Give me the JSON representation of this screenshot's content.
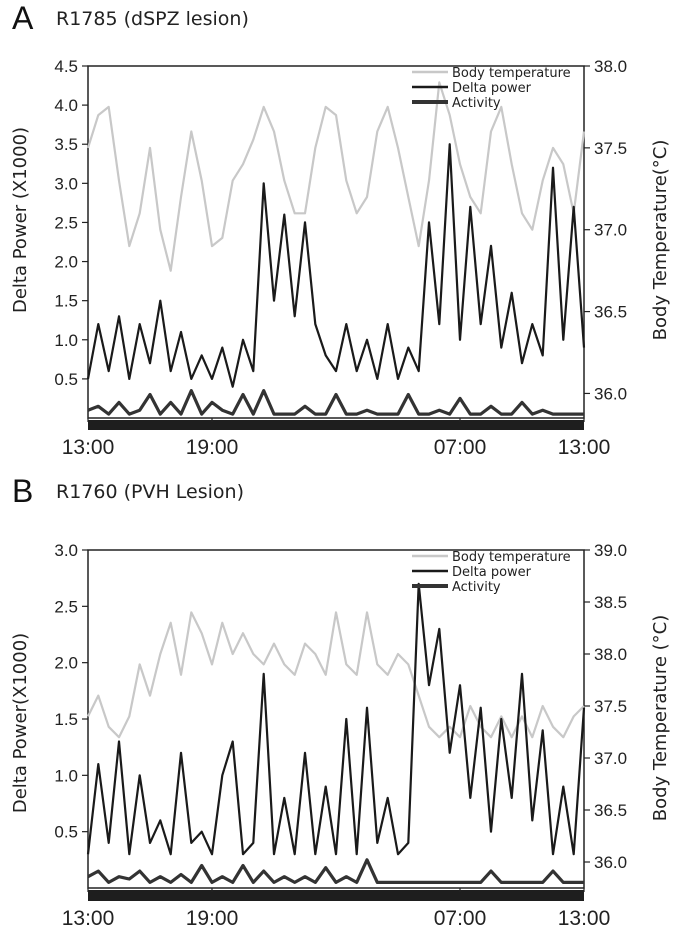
{
  "chart_data": [
    {
      "panel": "A",
      "title": "R1785 (dSPZ lesion)",
      "type": "line",
      "ylabel": "Delta Power (X1000)",
      "y2label": "Body Temperature(°C)",
      "ylim": [
        0,
        4.5
      ],
      "y2lim": [
        35.85,
        38.0
      ],
      "yticks": [
        "0.5",
        "1.0",
        "1.5",
        "2.0",
        "2.5",
        "3.0",
        "3.5",
        "4.0",
        "4.5"
      ],
      "y2ticks": [
        "36.0",
        "36.5",
        "37.0",
        "37.5",
        "38.0"
      ],
      "xticks": [
        "13:00",
        "19:00",
        "07:00",
        "13:00"
      ],
      "xtick_hours": [
        0,
        6,
        18,
        24
      ],
      "legend": {
        "position": "top-right",
        "entries": [
          "Body temperature",
          "Delta power",
          "Activity"
        ]
      },
      "colors": {
        "temperature": "#c8c8c8",
        "delta": "#1a1a1a",
        "activity": "#333333",
        "dark_bar": "#1e1e1e"
      },
      "series": [
        {
          "name": "Body temperature",
          "axis": "right",
          "x": [
            0,
            0.5,
            1,
            1.5,
            2,
            2.5,
            3,
            3.5,
            4,
            4.5,
            5,
            5.5,
            6,
            6.5,
            7,
            7.5,
            8,
            8.5,
            9,
            9.5,
            10,
            10.5,
            11,
            11.5,
            12,
            12.5,
            13,
            13.5,
            14,
            14.5,
            15,
            15.5,
            16,
            16.5,
            17,
            17.5,
            18,
            18.5,
            19,
            19.5,
            20,
            20.5,
            21,
            21.5,
            22,
            22.5,
            23,
            23.5,
            24
          ],
          "values": [
            37.5,
            37.7,
            37.75,
            37.3,
            36.9,
            37.1,
            37.5,
            37.0,
            36.75,
            37.2,
            37.6,
            37.3,
            36.9,
            36.95,
            37.3,
            37.4,
            37.55,
            37.75,
            37.6,
            37.3,
            37.1,
            37.1,
            37.5,
            37.75,
            37.7,
            37.3,
            37.1,
            37.2,
            37.6,
            37.75,
            37.5,
            37.2,
            36.9,
            37.3,
            37.9,
            37.7,
            37.4,
            37.2,
            37.1,
            37.6,
            37.75,
            37.4,
            37.1,
            37.0,
            37.3,
            37.5,
            37.4,
            37.1,
            37.6
          ]
        },
        {
          "name": "Delta power",
          "axis": "left",
          "x": [
            0,
            0.5,
            1,
            1.5,
            2,
            2.5,
            3,
            3.5,
            4,
            4.5,
            5,
            5.5,
            6,
            6.5,
            7,
            7.5,
            8,
            8.5,
            9,
            9.5,
            10,
            10.5,
            11,
            11.5,
            12,
            12.5,
            13,
            13.5,
            14,
            14.5,
            15,
            15.5,
            16,
            16.5,
            17,
            17.5,
            18,
            18.5,
            19,
            19.5,
            20,
            20.5,
            21,
            21.5,
            22,
            22.5,
            23,
            23.5,
            24
          ],
          "values": [
            0.5,
            1.2,
            0.6,
            1.3,
            0.5,
            1.2,
            0.7,
            1.5,
            0.6,
            1.1,
            0.5,
            0.8,
            0.5,
            0.9,
            0.4,
            1.0,
            0.6,
            3.0,
            1.5,
            2.6,
            1.3,
            2.5,
            1.2,
            0.8,
            0.6,
            1.2,
            0.6,
            1.0,
            0.5,
            1.2,
            0.5,
            0.9,
            0.6,
            2.5,
            1.2,
            3.5,
            1.0,
            2.7,
            1.2,
            2.2,
            0.9,
            1.6,
            0.7,
            1.2,
            0.8,
            3.2,
            1.0,
            2.7,
            0.9
          ]
        },
        {
          "name": "Activity",
          "axis": "left",
          "x": [
            0,
            0.5,
            1,
            1.5,
            2,
            2.5,
            3,
            3.5,
            4,
            4.5,
            5,
            5.5,
            6,
            6.5,
            7,
            7.5,
            8,
            8.5,
            9,
            9.5,
            10,
            10.5,
            11,
            11.5,
            12,
            12.5,
            13,
            13.5,
            14,
            14.5,
            15,
            15.5,
            16,
            16.5,
            17,
            17.5,
            18,
            18.5,
            19,
            19.5,
            20,
            20.5,
            21,
            21.5,
            22,
            22.5,
            23,
            23.5,
            24
          ],
          "values": [
            0.1,
            0.15,
            0.05,
            0.2,
            0.05,
            0.1,
            0.3,
            0.05,
            0.2,
            0.05,
            0.35,
            0.05,
            0.2,
            0.1,
            0.05,
            0.3,
            0.05,
            0.35,
            0.05,
            0.05,
            0.05,
            0.15,
            0.05,
            0.05,
            0.3,
            0.05,
            0.05,
            0.1,
            0.05,
            0.05,
            0.05,
            0.3,
            0.05,
            0.05,
            0.1,
            0.05,
            0.25,
            0.05,
            0.05,
            0.15,
            0.05,
            0.05,
            0.2,
            0.05,
            0.1,
            0.05,
            0.05,
            0.05,
            0.05
          ]
        }
      ]
    },
    {
      "panel": "B",
      "title": "R1760 (PVH Lesion)",
      "type": "line",
      "ylabel": "Delta Power(X1000)",
      "y2label": "Body Temperature (°C)",
      "ylim": [
        0,
        3.0
      ],
      "y2lim": [
        35.75,
        39.0
      ],
      "yticks": [
        "0.5",
        "1.0",
        "1.5",
        "2.0",
        "2.5",
        "3.0"
      ],
      "y2ticks": [
        "36.0",
        "36.5",
        "37.0",
        "37.5",
        "38.0",
        "38.5",
        "39.0"
      ],
      "xticks": [
        "13:00",
        "19:00",
        "07:00",
        "13:00"
      ],
      "xtick_hours": [
        0,
        6,
        18,
        24
      ],
      "legend": {
        "position": "top-right",
        "entries": [
          "Body temperature",
          "Delta power",
          "Activity"
        ]
      },
      "colors": {
        "temperature": "#c8c8c8",
        "delta": "#1a1a1a",
        "activity": "#333333",
        "dark_bar": "#1e1e1e"
      },
      "series": [
        {
          "name": "Body temperature",
          "axis": "right",
          "x": [
            0,
            0.5,
            1,
            1.5,
            2,
            2.5,
            3,
            3.5,
            4,
            4.5,
            5,
            5.5,
            6,
            6.5,
            7,
            7.5,
            8,
            8.5,
            9,
            9.5,
            10,
            10.5,
            11,
            11.5,
            12,
            12.5,
            13,
            13.5,
            14,
            14.5,
            15,
            15.5,
            16,
            16.5,
            17,
            17.5,
            18,
            18.5,
            19,
            19.5,
            20,
            20.5,
            21,
            21.5,
            22,
            22.5,
            23,
            23.5,
            24
          ],
          "values": [
            37.4,
            37.6,
            37.3,
            37.2,
            37.4,
            37.9,
            37.6,
            38.0,
            38.3,
            37.8,
            38.4,
            38.2,
            37.9,
            38.3,
            38.0,
            38.2,
            38.0,
            37.9,
            38.1,
            37.9,
            37.8,
            38.1,
            38.0,
            37.8,
            38.4,
            37.9,
            37.8,
            38.4,
            37.9,
            37.8,
            38.0,
            37.9,
            37.6,
            37.3,
            37.2,
            37.3,
            37.2,
            37.5,
            37.3,
            37.2,
            37.4,
            37.2,
            37.4,
            37.2,
            37.5,
            37.3,
            37.2,
            37.4,
            37.5
          ]
        },
        {
          "name": "Delta power",
          "axis": "left",
          "x": [
            0,
            0.5,
            1,
            1.5,
            2,
            2.5,
            3,
            3.5,
            4,
            4.5,
            5,
            5.5,
            6,
            6.5,
            7,
            7.5,
            8,
            8.5,
            9,
            9.5,
            10,
            10.5,
            11,
            11.5,
            12,
            12.5,
            13,
            13.5,
            14,
            14.5,
            15,
            15.5,
            16,
            16.5,
            17,
            17.5,
            18,
            18.5,
            19,
            19.5,
            20,
            20.5,
            21,
            21.5,
            22,
            22.5,
            23,
            23.5,
            24
          ],
          "values": [
            0.3,
            1.1,
            0.4,
            1.3,
            0.3,
            1.0,
            0.4,
            0.6,
            0.3,
            1.2,
            0.4,
            0.5,
            0.3,
            1.0,
            1.3,
            0.3,
            0.4,
            1.9,
            0.3,
            0.8,
            0.3,
            1.2,
            0.3,
            0.9,
            0.3,
            1.5,
            0.3,
            1.6,
            0.4,
            0.8,
            0.3,
            0.4,
            2.7,
            1.8,
            2.3,
            1.2,
            1.8,
            0.8,
            1.6,
            0.5,
            1.5,
            0.8,
            1.9,
            0.6,
            1.4,
            0.3,
            0.9,
            0.3,
            1.6
          ]
        },
        {
          "name": "Activity",
          "axis": "left",
          "x": [
            0,
            0.5,
            1,
            1.5,
            2,
            2.5,
            3,
            3.5,
            4,
            4.5,
            5,
            5.5,
            6,
            6.5,
            7,
            7.5,
            8,
            8.5,
            9,
            9.5,
            10,
            10.5,
            11,
            11.5,
            12,
            12.5,
            13,
            13.5,
            14,
            14.5,
            15,
            15.5,
            16,
            16.5,
            17,
            17.5,
            18,
            18.5,
            19,
            19.5,
            20,
            20.5,
            21,
            21.5,
            22,
            22.5,
            23,
            23.5,
            24
          ],
          "values": [
            0.1,
            0.15,
            0.05,
            0.1,
            0.08,
            0.15,
            0.05,
            0.1,
            0.05,
            0.12,
            0.05,
            0.2,
            0.05,
            0.1,
            0.05,
            0.2,
            0.05,
            0.15,
            0.05,
            0.1,
            0.05,
            0.1,
            0.05,
            0.18,
            0.05,
            0.1,
            0.05,
            0.25,
            0.05,
            0.05,
            0.05,
            0.05,
            0.05,
            0.05,
            0.05,
            0.05,
            0.05,
            0.05,
            0.05,
            0.15,
            0.05,
            0.05,
            0.05,
            0.05,
            0.05,
            0.15,
            0.05,
            0.05,
            0.05
          ]
        }
      ]
    }
  ]
}
